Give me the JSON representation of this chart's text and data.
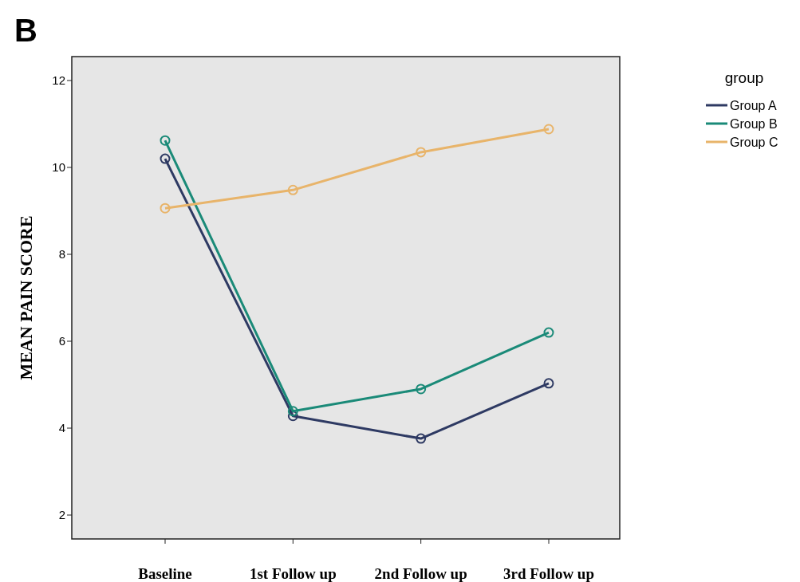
{
  "chart_data": {
    "type": "line",
    "ylabel": "MEAN PAIN SCORE",
    "legend_title": "group",
    "annotations": [
      "B"
    ],
    "categories": [
      "Baseline",
      "1st Follow up",
      "2nd Follow up",
      "3rd Follow up"
    ],
    "series": [
      {
        "name": "Group A",
        "color": "#2e3a63",
        "values": [
          10.2,
          4.28,
          3.76,
          5.03
        ]
      },
      {
        "name": "Group B",
        "color": "#1a8a78",
        "values": [
          10.62,
          4.39,
          4.9,
          6.2
        ]
      },
      {
        "name": "Group C",
        "color": "#e8b46a",
        "values": [
          9.06,
          9.48,
          10.35,
          10.88
        ]
      }
    ],
    "ylim": [
      1.45,
      12.55
    ],
    "yticks": [
      2,
      4,
      6,
      8,
      10,
      12
    ],
    "grid": false,
    "legend": "top right",
    "marker": "circle",
    "line_style": "solid"
  }
}
